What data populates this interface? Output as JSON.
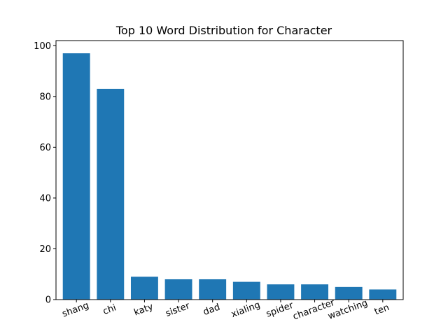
{
  "chart_data": {
    "type": "bar",
    "title": "Top 10 Word Distribution for Character",
    "xlabel": "",
    "ylabel": "",
    "categories": [
      "shang",
      "chi",
      "katy",
      "sister",
      "dad",
      "xialing",
      "spider",
      "character",
      "watching",
      "ten"
    ],
    "values": [
      97,
      83,
      9,
      8,
      8,
      7,
      6,
      6,
      5,
      4
    ],
    "ylim": [
      0,
      102
    ],
    "yticks": [
      0,
      20,
      40,
      60,
      80,
      100
    ],
    "grid": false,
    "legend": "none",
    "bar_color": "#1f77b4"
  }
}
